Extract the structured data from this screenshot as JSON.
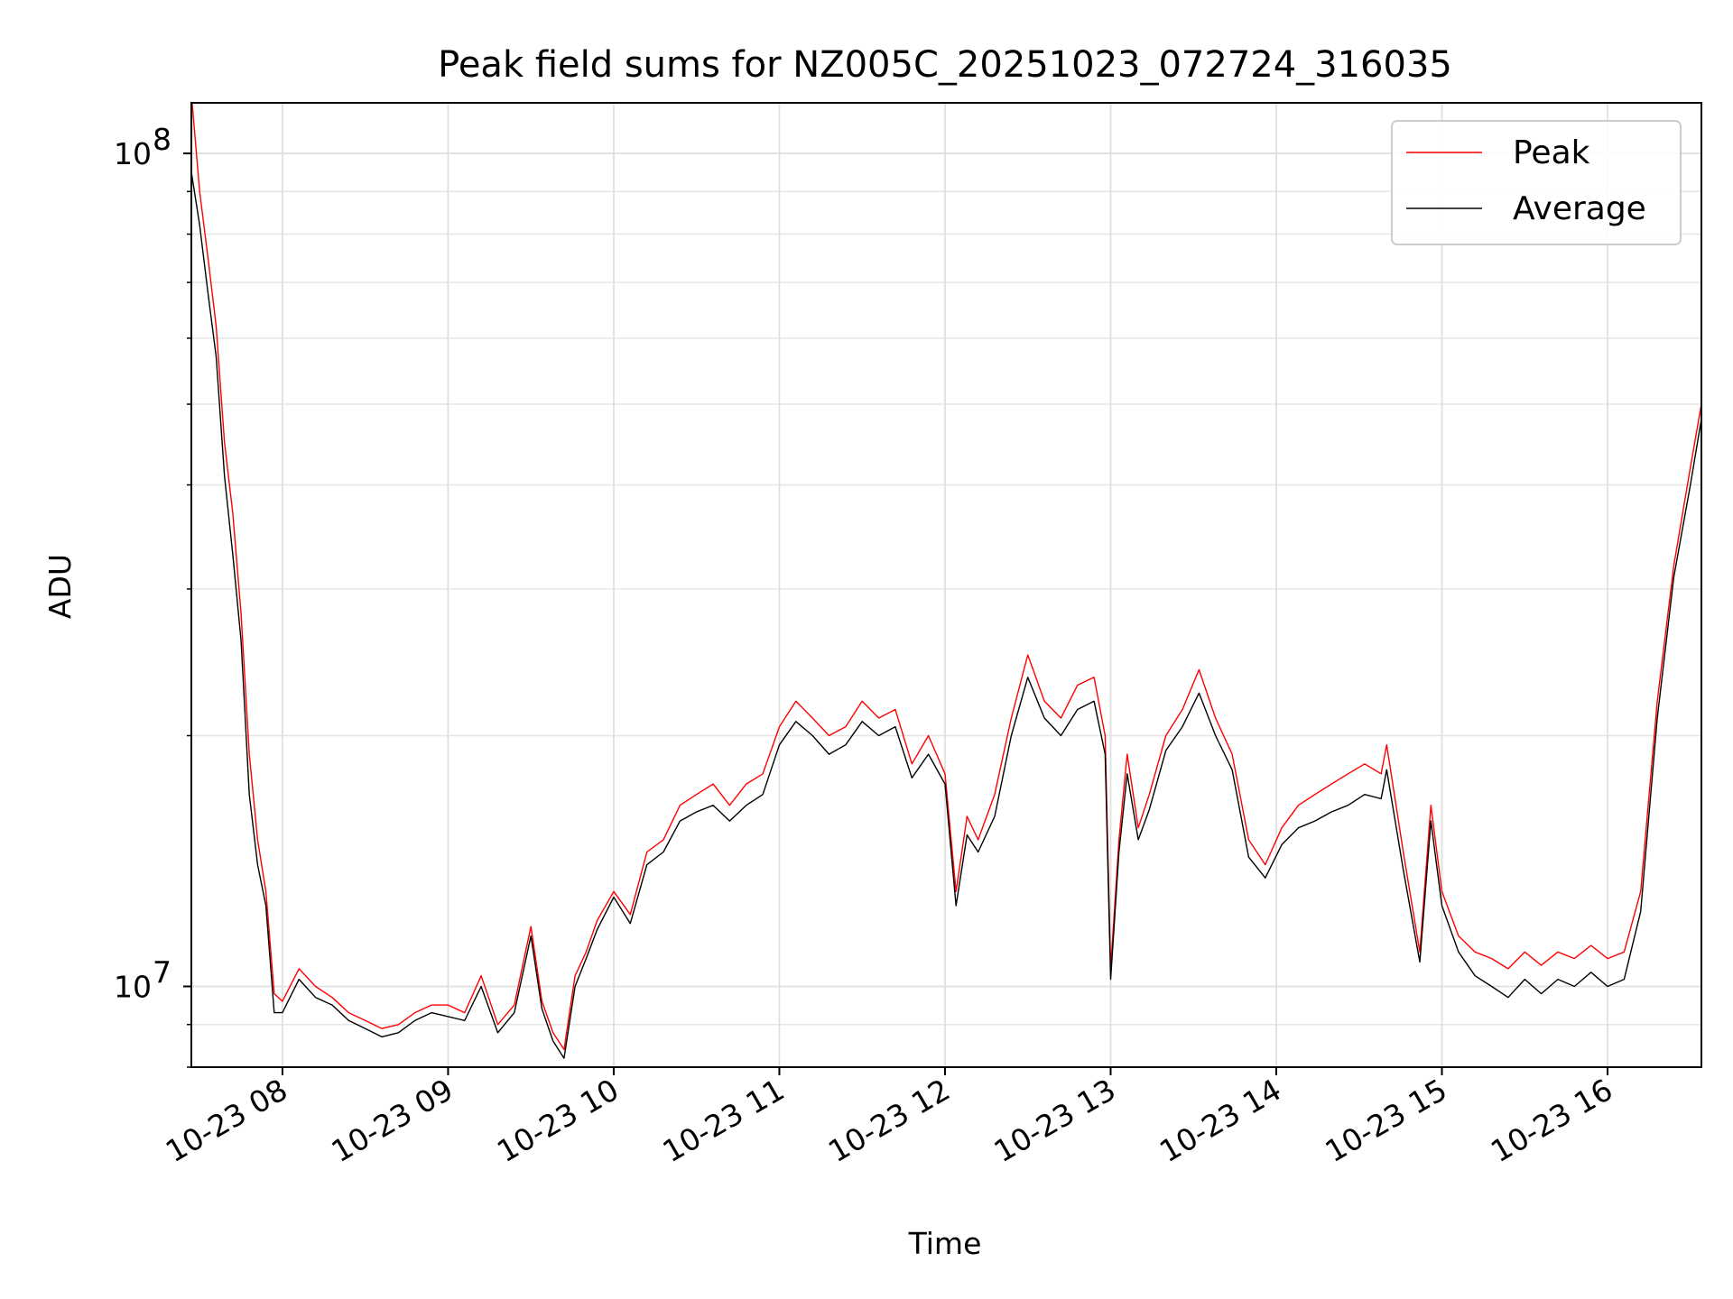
{
  "chart_data": {
    "type": "line",
    "title": "Peak field sums for NZ005C_20251023_072724_316035",
    "xlabel": "Time",
    "ylabel": "ADU",
    "yscale": "log",
    "grid": true,
    "legend_position": "top-right",
    "xlim": [
      "2025-10-23 07:27",
      "2025-10-23 16:34"
    ],
    "ylim": [
      8000000,
      115000000
    ],
    "x_ticks": [
      "10-23 08",
      "10-23 09",
      "10-23 10",
      "10-23 11",
      "10-23 12",
      "10-23 13",
      "10-23 14",
      "10-23 15",
      "10-23 16"
    ],
    "x_tick_times": [
      "2025-10-23 08:00",
      "2025-10-23 09:00",
      "2025-10-23 10:00",
      "2025-10-23 11:00",
      "2025-10-23 12:00",
      "2025-10-23 13:00",
      "2025-10-23 14:00",
      "2025-10-23 15:00",
      "2025-10-23 16:00"
    ],
    "y_major_ticks": [
      {
        "value": 10000000,
        "base": "10",
        "exp": "7"
      },
      {
        "value": 100000000,
        "base": "10",
        "exp": "8"
      }
    ],
    "y_minor_ticks": [
      8000000,
      9000000,
      20000000,
      30000000,
      40000000,
      50000000,
      60000000,
      70000000,
      80000000,
      90000000
    ],
    "x": [
      "2025-10-23 07:27",
      "2025-10-23 07:30",
      "2025-10-23 07:33",
      "2025-10-23 07:36",
      "2025-10-23 07:39",
      "2025-10-23 07:42",
      "2025-10-23 07:45",
      "2025-10-23 07:48",
      "2025-10-23 07:51",
      "2025-10-23 07:54",
      "2025-10-23 07:57",
      "2025-10-23 08:00",
      "2025-10-23 08:06",
      "2025-10-23 08:12",
      "2025-10-23 08:18",
      "2025-10-23 08:24",
      "2025-10-23 08:30",
      "2025-10-23 08:36",
      "2025-10-23 08:42",
      "2025-10-23 08:48",
      "2025-10-23 08:54",
      "2025-10-23 09:00",
      "2025-10-23 09:06",
      "2025-10-23 09:12",
      "2025-10-23 09:18",
      "2025-10-23 09:24",
      "2025-10-23 09:30",
      "2025-10-23 09:34",
      "2025-10-23 09:38",
      "2025-10-23 09:42",
      "2025-10-23 09:46",
      "2025-10-23 09:50",
      "2025-10-23 09:54",
      "2025-10-23 10:00",
      "2025-10-23 10:06",
      "2025-10-23 10:12",
      "2025-10-23 10:18",
      "2025-10-23 10:24",
      "2025-10-23 10:30",
      "2025-10-23 10:36",
      "2025-10-23 10:42",
      "2025-10-23 10:48",
      "2025-10-23 10:54",
      "2025-10-23 11:00",
      "2025-10-23 11:06",
      "2025-10-23 11:12",
      "2025-10-23 11:18",
      "2025-10-23 11:24",
      "2025-10-23 11:30",
      "2025-10-23 11:36",
      "2025-10-23 11:42",
      "2025-10-23 11:48",
      "2025-10-23 11:54",
      "2025-10-23 12:00",
      "2025-10-23 12:04",
      "2025-10-23 12:08",
      "2025-10-23 12:12",
      "2025-10-23 12:18",
      "2025-10-23 12:24",
      "2025-10-23 12:30",
      "2025-10-23 12:36",
      "2025-10-23 12:42",
      "2025-10-23 12:48",
      "2025-10-23 12:54",
      "2025-10-23 12:58",
      "2025-10-23 13:00",
      "2025-10-23 13:03",
      "2025-10-23 13:06",
      "2025-10-23 13:10",
      "2025-10-23 13:14",
      "2025-10-23 13:20",
      "2025-10-23 13:26",
      "2025-10-23 13:32",
      "2025-10-23 13:38",
      "2025-10-23 13:44",
      "2025-10-23 13:50",
      "2025-10-23 13:56",
      "2025-10-23 14:02",
      "2025-10-23 14:08",
      "2025-10-23 14:14",
      "2025-10-23 14:20",
      "2025-10-23 14:26",
      "2025-10-23 14:32",
      "2025-10-23 14:38",
      "2025-10-23 14:40",
      "2025-10-23 14:46",
      "2025-10-23 14:52",
      "2025-10-23 14:56",
      "2025-10-23 15:00",
      "2025-10-23 15:06",
      "2025-10-23 15:12",
      "2025-10-23 15:18",
      "2025-10-23 15:24",
      "2025-10-23 15:30",
      "2025-10-23 15:36",
      "2025-10-23 15:42",
      "2025-10-23 15:48",
      "2025-10-23 15:54",
      "2025-10-23 16:00",
      "2025-10-23 16:06",
      "2025-10-23 16:12",
      "2025-10-23 16:18",
      "2025-10-23 16:24",
      "2025-10-23 16:30",
      "2025-10-23 16:34"
    ],
    "series": [
      {
        "name": "Peak",
        "color": "#ff0000",
        "values": [
          118000000,
          90000000,
          75000000,
          62000000,
          45000000,
          37000000,
          28000000,
          19000000,
          15000000,
          13000000,
          9800000,
          9600000,
          10500000,
          10000000,
          9700000,
          9300000,
          9100000,
          8900000,
          9000000,
          9300000,
          9500000,
          9500000,
          9300000,
          10300000,
          9000000,
          9500000,
          11800000,
          9600000,
          8800000,
          8400000,
          10300000,
          11000000,
          12000000,
          13000000,
          12200000,
          14500000,
          15000000,
          16500000,
          17000000,
          17500000,
          16500000,
          17500000,
          18000000,
          20500000,
          22000000,
          21000000,
          20000000,
          20500000,
          22000000,
          21000000,
          21500000,
          18500000,
          20000000,
          18000000,
          13000000,
          16000000,
          15000000,
          17000000,
          21000000,
          25000000,
          22000000,
          21000000,
          23000000,
          23500000,
          20000000,
          10500000,
          15000000,
          19000000,
          15500000,
          17000000,
          20000000,
          21500000,
          24000000,
          21000000,
          19000000,
          15000000,
          14000000,
          15500000,
          16500000,
          17000000,
          17500000,
          18000000,
          18500000,
          18000000,
          19500000,
          14500000,
          11000000,
          16500000,
          13000000,
          11500000,
          11000000,
          10800000,
          10500000,
          11000000,
          10600000,
          11000000,
          10800000,
          11200000,
          10800000,
          11000000,
          13000000,
          22000000,
          32000000,
          42000000,
          50000000
        ]
      },
      {
        "name": "Average",
        "color": "#000000",
        "values": [
          95000000,
          82000000,
          68000000,
          57000000,
          41000000,
          33000000,
          26000000,
          17000000,
          14000000,
          12500000,
          9300000,
          9300000,
          10200000,
          9700000,
          9500000,
          9100000,
          8900000,
          8700000,
          8800000,
          9100000,
          9300000,
          9200000,
          9100000,
          10000000,
          8800000,
          9300000,
          11500000,
          9400000,
          8600000,
          8200000,
          10000000,
          10800000,
          11700000,
          12800000,
          11900000,
          14000000,
          14500000,
          15800000,
          16200000,
          16500000,
          15800000,
          16500000,
          17000000,
          19500000,
          20800000,
          20000000,
          19000000,
          19500000,
          20800000,
          20000000,
          20500000,
          17800000,
          19000000,
          17500000,
          12500000,
          15200000,
          14500000,
          16000000,
          20000000,
          23500000,
          21000000,
          20000000,
          21500000,
          22000000,
          19000000,
          10200000,
          14500000,
          18000000,
          15000000,
          16300000,
          19200000,
          20500000,
          22500000,
          20000000,
          18200000,
          14300000,
          13500000,
          14800000,
          15500000,
          15800000,
          16200000,
          16500000,
          17000000,
          16800000,
          18200000,
          13800000,
          10700000,
          15800000,
          12500000,
          11000000,
          10300000,
          10000000,
          9700000,
          10200000,
          9800000,
          10200000,
          10000000,
          10400000,
          10000000,
          10200000,
          12300000,
          21000000,
          31000000,
          40000000,
          48000000
        ]
      }
    ]
  }
}
